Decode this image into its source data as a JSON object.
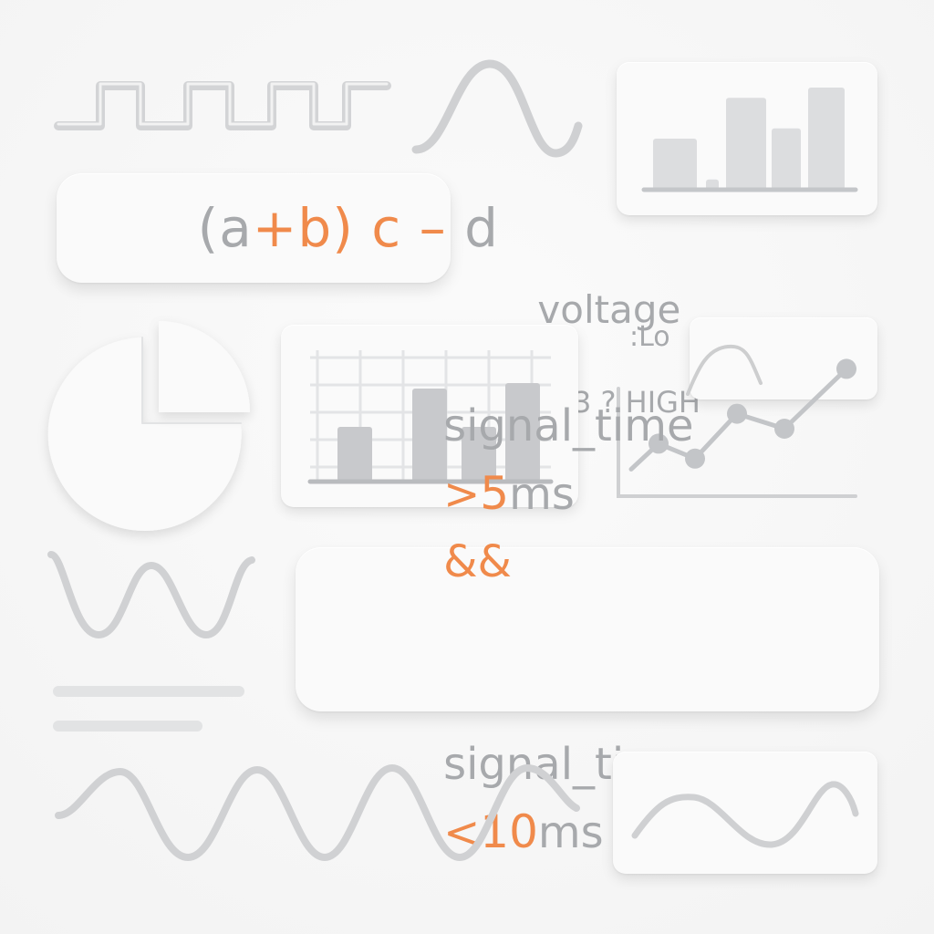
{
  "colors": {
    "gray_text": "#a7a9ac",
    "accent": "#f08a4b",
    "line": "#c4c6c9",
    "bar": "#c8c9cc",
    "card": "#fafafa"
  },
  "expression": {
    "open": "(a",
    "plus": "+",
    "b": "b)",
    "c_minus": "c –",
    "d": "d"
  },
  "condition": {
    "word": "voltage",
    "op": ">",
    "rest": "3.3 ? HIGH'"
  },
  "fragment_label": ":Lo",
  "timing": {
    "line1_word": "signal_time",
    "line1_op": ">",
    "line1_num": "5",
    "line1_unit": "ms",
    "line1_and": "&&",
    "line2_word": "signal_time",
    "line2_op": "<",
    "line2_num": "10",
    "line2_unit": "ms"
  },
  "icons": {
    "square_wave": "square-wave-icon",
    "bell_wave": "bell-wave-icon",
    "pie": "pie-chart-icon",
    "sine_small": "sine-wave-icon",
    "sine_long": "long-sine-wave-icon",
    "rule_lines": "horizontal-lines-icon"
  },
  "chart_data": [
    {
      "type": "bar",
      "values": [
        5,
        1,
        9,
        6,
        10
      ],
      "ylim": [
        0,
        10
      ],
      "grid": false
    },
    {
      "type": "bar",
      "values": [
        5,
        8.5,
        5,
        9
      ],
      "ylim": [
        0,
        12
      ],
      "grid": true
    },
    {
      "type": "line",
      "values": [
        4,
        3,
        6,
        5,
        9
      ],
      "ylim": [
        0,
        10
      ],
      "grid": false
    }
  ]
}
